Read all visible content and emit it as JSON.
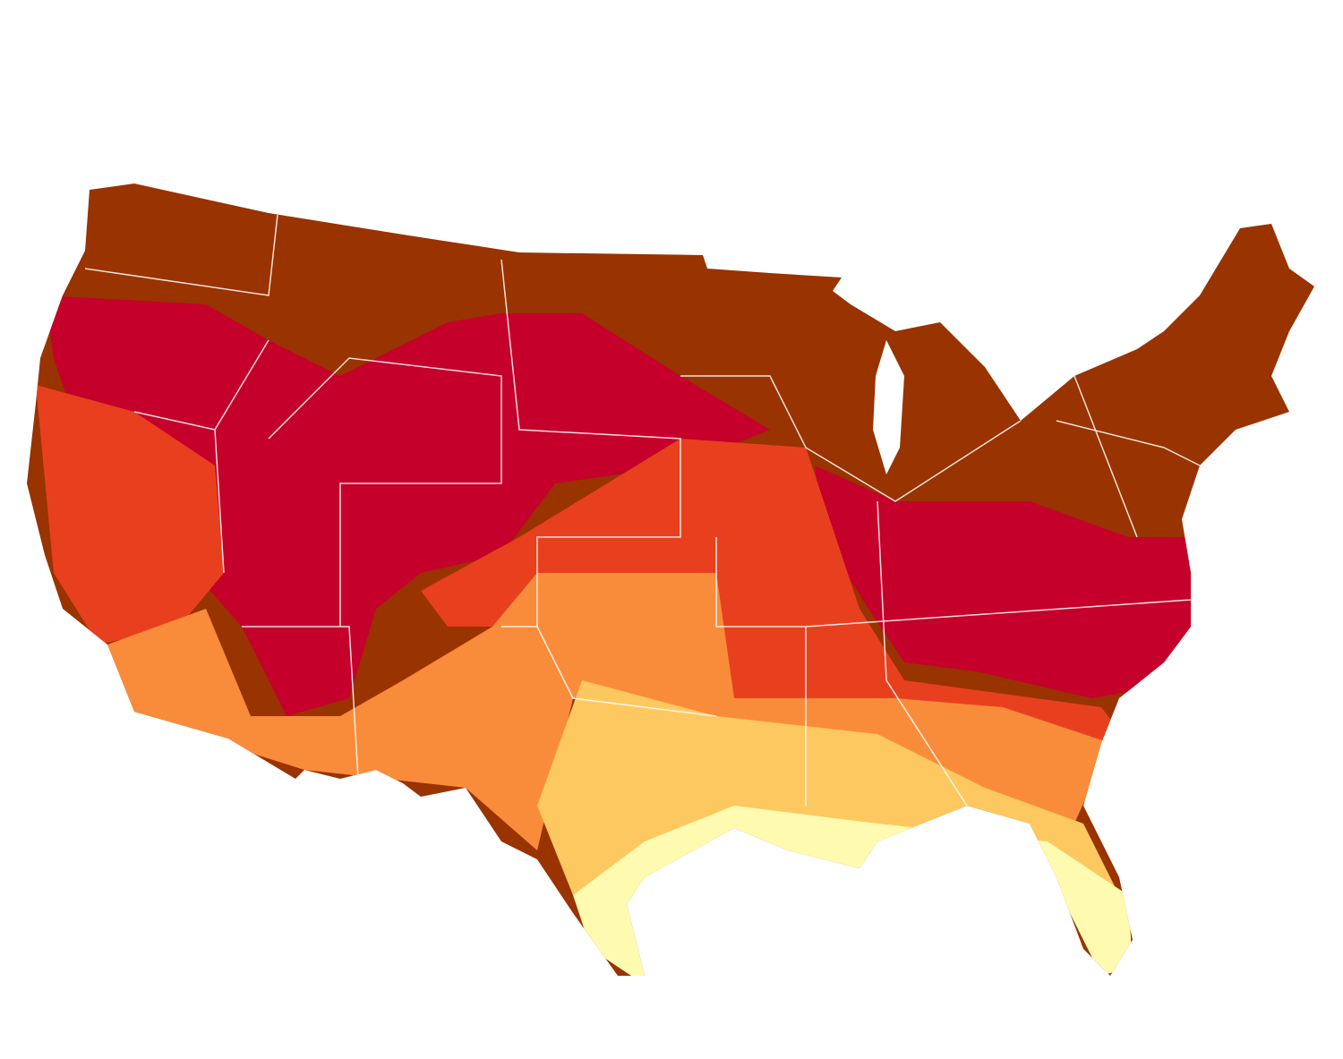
{
  "map": {
    "colors": [
      "#993300",
      "#c4002b",
      "#e8401f",
      "#f98c3a",
      "#fdc860",
      "#fefbb0"
    ]
  }
}
